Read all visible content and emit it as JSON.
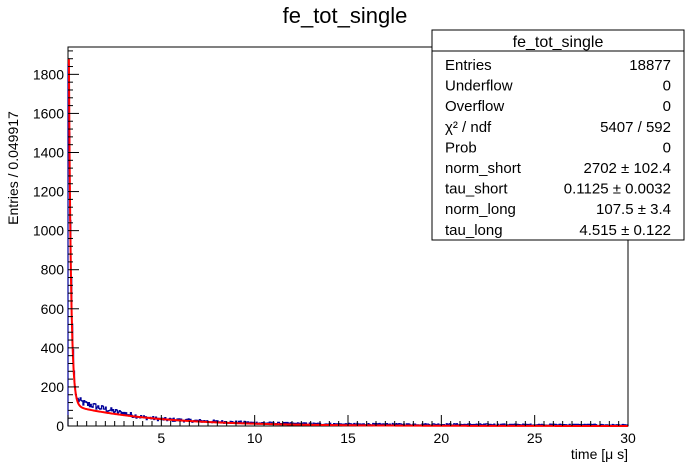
{
  "chart_data": {
    "type": "bar",
    "title": "fe_tot_single",
    "xlabel": "time [μ s]",
    "ylabel": "Entries / 0.049917",
    "xlim": [
      0,
      30
    ],
    "ylim": [
      0,
      1940
    ],
    "x_ticks": [
      5,
      10,
      15,
      20,
      25,
      30
    ],
    "y_ticks": [
      0,
      200,
      400,
      600,
      800,
      1000,
      1200,
      1400,
      1600,
      1800
    ],
    "grid": false,
    "bin_width": 0.049917,
    "histogram_approx": {
      "x": [
        0.025,
        0.075,
        0.125,
        0.175,
        0.225,
        0.275,
        0.325,
        0.375,
        0.425,
        0.475,
        0.6,
        0.8,
        1.0,
        1.25,
        1.5,
        1.75,
        2.0,
        2.5,
        3.0,
        3.5,
        4.0,
        5.0,
        6.0,
        8.0,
        10.0,
        12.0,
        15.0,
        18.0,
        20.0,
        22.0,
        25.0,
        27.0,
        29.0,
        30.0
      ],
      "y": [
        1850,
        1500,
        1050,
        760,
        520,
        390,
        280,
        200,
        160,
        140,
        130,
        120,
        112,
        108,
        100,
        92,
        88,
        75,
        65,
        55,
        45,
        35,
        30,
        22,
        16,
        12,
        9,
        8,
        8,
        7,
        6,
        6,
        5,
        4
      ]
    },
    "fit_function": {
      "form": "norm_short*exp(-t/tau_short) + norm_long*exp(-t/tau_long)",
      "color": "#ff0000",
      "x_range": [
        0.01,
        30
      ],
      "params": {
        "norm_short": 2702,
        "tau_short": 0.1125,
        "norm_long": 107.5,
        "tau_long": 4.515
      }
    },
    "histogram_color": "#000099",
    "legend": "top-right"
  },
  "stats": {
    "title": "fe_tot_single",
    "rows": [
      {
        "label": "Entries",
        "value": "18877"
      },
      {
        "label": "Underflow",
        "value": "0"
      },
      {
        "label": "Overflow",
        "value": "0"
      },
      {
        "label": "χ² / ndf",
        "value": "5407 / 592"
      },
      {
        "label": "Prob",
        "value": "0"
      },
      {
        "label": "norm_short",
        "value": "2702 ± 102.4"
      },
      {
        "label": "tau_short",
        "value": "0.1125 ± 0.0032"
      },
      {
        "label": "norm_long",
        "value": "107.5 ± 3.4"
      },
      {
        "label": "tau_long",
        "value": "4.515 ± 0.122"
      }
    ]
  }
}
